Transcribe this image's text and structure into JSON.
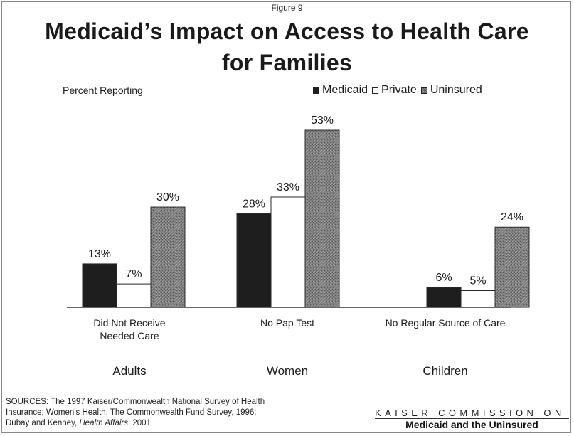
{
  "figure_label": "Figure 9",
  "title_line1": "Medicaid’s Impact on Access to Health Care",
  "title_line2": "for Families",
  "y_caption": "Percent Reporting",
  "legend": [
    {
      "label": "Medicaid",
      "color": "#1e1e1e"
    },
    {
      "label": "Private",
      "color": "#ffffff"
    },
    {
      "label": "Uninsured",
      "color": "#7a7a7a"
    }
  ],
  "sources": {
    "line1": "SOURCES: The 1997 Kaiser/Commonwealth National Survey of Health",
    "line2": "Insurance; Women's Health, The Commonwealth Fund Survey, 1996;",
    "line3_prefix": "Dubay and Kenney, ",
    "line3_journal": "Health Affairs",
    "line3_suffix": ", 2001."
  },
  "org": {
    "top": "KAISER COMMISSION ON",
    "bottom": "Medicaid and the Uninsured"
  },
  "chart_data": {
    "type": "bar",
    "title": "Medicaid’s Impact on Access to Health Care for Families",
    "ylabel": "Percent Reporting",
    "categories": [
      "Did Not Receive Needed Care",
      "No Pap Test",
      "No Regular Source of Care"
    ],
    "category_lines": [
      [
        "Did Not Receive",
        "Needed Care"
      ],
      [
        "No Pap Test"
      ],
      [
        "No Regular Source of Care"
      ]
    ],
    "groups": [
      "Adults",
      "Women",
      "Children"
    ],
    "series": [
      {
        "name": "Medicaid",
        "values": [
          13,
          28,
          6
        ],
        "labels": [
          "13%",
          "28%",
          "6%"
        ]
      },
      {
        "name": "Private",
        "values": [
          7,
          33,
          5
        ],
        "labels": [
          "7%",
          "33%",
          "5%"
        ]
      },
      {
        "name": "Uninsured",
        "values": [
          30,
          53,
          24
        ],
        "labels": [
          "30%",
          "53%",
          "24%"
        ]
      }
    ],
    "ylim": [
      0,
      53
    ],
    "grid": false,
    "legend_position": "top-right"
  }
}
